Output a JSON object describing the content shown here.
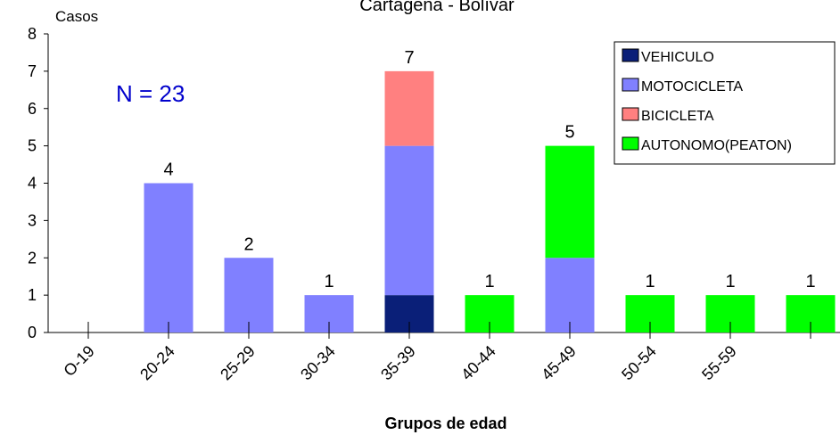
{
  "chart_data": {
    "type": "bar",
    "stacked": true,
    "title": "Cartagena - Bolívar",
    "xlabel": "Grupos de edad",
    "ylabel": "Casos",
    "annotation": "N = 23",
    "ylim": [
      0,
      8
    ],
    "yticks": [
      0,
      1,
      2,
      3,
      4,
      5,
      6,
      7,
      8
    ],
    "categories": [
      "O-19",
      "20-24",
      "25-29",
      "30-34",
      "35-39",
      "40-44",
      "45-49",
      "50-54",
      "55-59",
      ""
    ],
    "series": [
      {
        "name": "VEHICULO",
        "color": "#0a1f78",
        "values": [
          0,
          0,
          0,
          0,
          1,
          0,
          0,
          0,
          0,
          0
        ]
      },
      {
        "name": "MOTOCICLETA",
        "color": "#8080ff",
        "values": [
          0,
          4,
          2,
          1,
          4,
          0,
          2,
          0,
          0,
          0
        ]
      },
      {
        "name": "BICICLETA",
        "color": "#ff8080",
        "values": [
          0,
          0,
          0,
          0,
          2,
          0,
          0,
          0,
          0,
          0
        ]
      },
      {
        "name": "AUTONOMO(PEATON)",
        "color": "#00ff00",
        "values": [
          0,
          0,
          0,
          0,
          0,
          1,
          3,
          1,
          1,
          1
        ]
      }
    ],
    "totals": [
      0,
      4,
      2,
      1,
      7,
      1,
      5,
      1,
      1,
      1
    ],
    "legend_position": "top-right",
    "grid": false
  }
}
